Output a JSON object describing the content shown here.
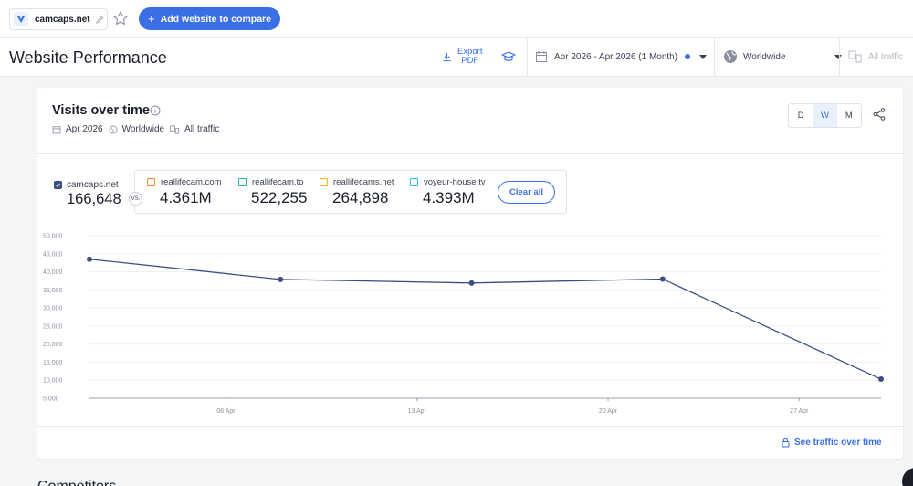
{
  "topbar": {
    "site_name": "camcaps.net",
    "add_button_label": "Add website to compare"
  },
  "header": {
    "title": "Website Performance",
    "export_label_line1": "Export",
    "export_label_line2": "PDF",
    "date_range": "Apr 2026 - Apr 2026 (1 Month)",
    "region": "Worldwide",
    "traffic_type": "All traffic"
  },
  "card": {
    "title": "Visits over time",
    "sub_date": "Apr 2026",
    "sub_region": "Worldwide",
    "sub_traffic": "All traffic",
    "granularity": [
      "D",
      "W",
      "M"
    ],
    "active_granularity": "W",
    "main_site": {
      "name": "camcaps.net",
      "value": "166,648"
    },
    "vs_label": "VS.",
    "competitors": [
      {
        "name": "reallifecam.com",
        "value": "4.361M",
        "color": "#f08a2c"
      },
      {
        "name": "reallifecam.to",
        "value": "522,255",
        "color": "#2bb5a8"
      },
      {
        "name": "reallifecams.net",
        "value": "264,898",
        "color": "#f2b90c"
      },
      {
        "name": "voyeur-house.tv",
        "value": "4.393M",
        "color": "#31c1d4"
      }
    ],
    "clear_all_label": "Clear all",
    "see_more_label": "See traffic over time"
  },
  "next_section_heading": "Competitors",
  "colors": {
    "accent": "#3a6fe8",
    "series": "#3a4f80"
  },
  "chart_data": {
    "type": "line",
    "ylim": [
      5000,
      50000
    ],
    "yticks": [
      "50,000",
      "45,000",
      "40,000",
      "35,000",
      "30,000",
      "25,000",
      "20,000",
      "15,000",
      "10,000",
      "5,000"
    ],
    "xticks": [
      "06 Apr",
      "13 Apr",
      "20 Apr",
      "27 Apr"
    ],
    "series": [
      {
        "name": "camcaps.net",
        "x": [
          "2026-04-01",
          "2026-04-08",
          "2026-04-15",
          "2026-04-22",
          "2026-04-30"
        ],
        "values": [
          43500,
          37900,
          36900,
          38000,
          10300
        ]
      }
    ]
  }
}
